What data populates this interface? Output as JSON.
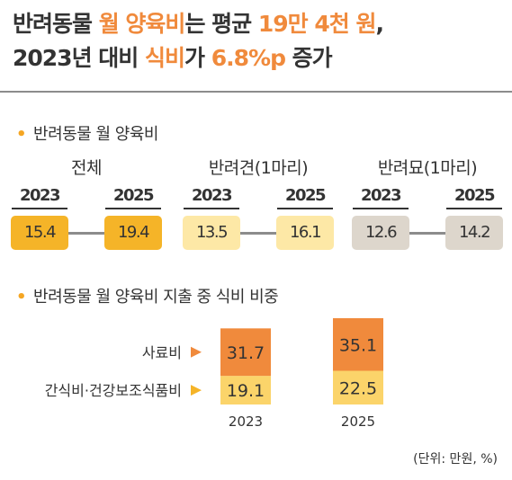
{
  "headline": {
    "l1_a": "반려동물 ",
    "l1_b": "월 양육비",
    "l1_c": "는 평균 ",
    "l1_d": "19만 4천 원",
    "l1_e": ",",
    "l2_a": "2023년 대비 ",
    "l2_b": "식비",
    "l2_c": "가 ",
    "l2_d": "6.8%p",
    "l2_e": " 증가"
  },
  "section1_title": "반려동물 월 양육비",
  "section2_title": "반려동물 월 양육비 지출 중 식비 비중",
  "unit_note": "(단위: 만원, %)",
  "colors": {
    "accent": "#f08a3c",
    "total": "#f5b428",
    "dog": "#fde8a6",
    "cat": "#ddd6cc",
    "feed": "#f08a3c",
    "snack": "#fbd46a",
    "connector": "#8c8c8c"
  },
  "chart_data": [
    {
      "type": "table",
      "title": "반려동물 월 양육비",
      "groups": [
        {
          "name": "전체",
          "years": [
            "2023",
            "2025"
          ],
          "values": [
            15.4,
            19.4
          ]
        },
        {
          "name": "반려견(1마리)",
          "years": [
            "2023",
            "2025"
          ],
          "values": [
            13.5,
            16.1
          ]
        },
        {
          "name": "반려묘(1마리)",
          "years": [
            "2023",
            "2025"
          ],
          "values": [
            12.6,
            14.2
          ]
        }
      ]
    },
    {
      "type": "bar",
      "stacked": true,
      "title": "반려동물 월 양육비 지출 중 식비 비중",
      "categories": [
        "2023",
        "2025"
      ],
      "series": [
        {
          "name": "간식비·건강보조식품비",
          "values": [
            19.1,
            22.5
          ]
        },
        {
          "name": "사료비",
          "values": [
            31.7,
            35.1
          ]
        }
      ],
      "ylim": [
        0,
        60
      ]
    }
  ]
}
